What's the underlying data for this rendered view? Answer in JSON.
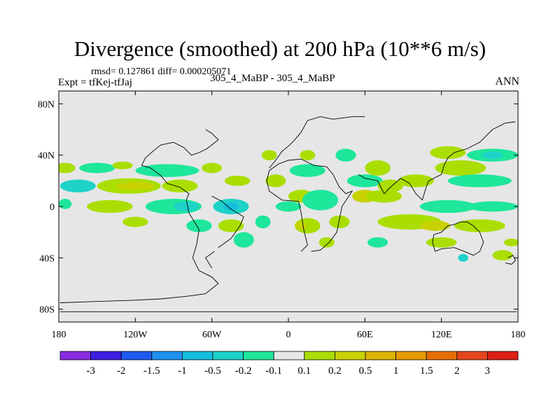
{
  "chart_data": {
    "type": "heatmap",
    "title": "Divergence (smoothed) at 200 hPa (10**6 m/s)",
    "stats_text": "rmsd= 0.127861 diff= 0.000205071",
    "experiment_text": "Expt = tfKej-tfJaj",
    "case_text": "305_4_MaBP - 305_4_MaBP",
    "season": "ANN",
    "xlim": [
      -180,
      180
    ],
    "ylim": [
      -90,
      90
    ],
    "x_ticks": [
      {
        "value": -180,
        "label": "180"
      },
      {
        "value": -120,
        "label": "120W"
      },
      {
        "value": -60,
        "label": "60W"
      },
      {
        "value": 0,
        "label": "0"
      },
      {
        "value": 60,
        "label": "60E"
      },
      {
        "value": 120,
        "label": "120E"
      },
      {
        "value": 180,
        "label": "180"
      }
    ],
    "y_ticks": [
      {
        "value": 80,
        "label": "80N"
      },
      {
        "value": 40,
        "label": "40N"
      },
      {
        "value": 0,
        "label": "0"
      },
      {
        "value": -40,
        "label": "40S"
      },
      {
        "value": -80,
        "label": "80S"
      }
    ],
    "colorbar": {
      "colors": [
        "#8a2be2",
        "#3c1ee0",
        "#1e5cf0",
        "#1e90f0",
        "#14bedc",
        "#1ed2c8",
        "#1ee69b",
        "#e6e6e6",
        "#aade00",
        "#c8d200",
        "#dcb400",
        "#e69b00",
        "#e66e00",
        "#e6461e",
        "#dc1e14"
      ],
      "labels": [
        "-3",
        "-2",
        "-1.5",
        "-1",
        "-0.5",
        "-0.2",
        "-0.1",
        "0.1",
        "0.2",
        "0.5",
        "1",
        "1.5",
        "2",
        "3"
      ]
    },
    "background_color": "#e6e6e6",
    "blobs": [
      {
        "lon": -175,
        "lat": 30,
        "rx": 8,
        "ry": 4,
        "level": 0.2
      },
      {
        "lon": -150,
        "lat": 30,
        "rx": 14,
        "ry": 4,
        "level": -0.1
      },
      {
        "lon": -130,
        "lat": 32,
        "rx": 8,
        "ry": 3,
        "level": 0.2
      },
      {
        "lon": -95,
        "lat": 28,
        "rx": 25,
        "ry": 5,
        "level": -0.1
      },
      {
        "lon": -60,
        "lat": 30,
        "rx": 8,
        "ry": 4,
        "level": 0.2
      },
      {
        "lon": -165,
        "lat": 16,
        "rx": 14,
        "ry": 5,
        "level": -0.2
      },
      {
        "lon": -125,
        "lat": 16,
        "rx": 25,
        "ry": 6,
        "level": 0.2
      },
      {
        "lon": -120,
        "lat": 16,
        "rx": 15,
        "ry": 3,
        "level": 0.5
      },
      {
        "lon": -85,
        "lat": 16,
        "rx": 14,
        "ry": 5,
        "level": 0.2
      },
      {
        "lon": -140,
        "lat": 0,
        "rx": 18,
        "ry": 5,
        "level": 0.2
      },
      {
        "lon": -175,
        "lat": 2,
        "rx": 5,
        "ry": 4,
        "level": -0.1
      },
      {
        "lon": -90,
        "lat": 0,
        "rx": 22,
        "ry": 6,
        "level": -0.1
      },
      {
        "lon": -80,
        "lat": 0,
        "rx": 10,
        "ry": 4,
        "level": -0.2
      },
      {
        "lon": -120,
        "lat": -12,
        "rx": 10,
        "ry": 4,
        "level": 0.2
      },
      {
        "lon": -70,
        "lat": -15,
        "rx": 10,
        "ry": 5,
        "level": -0.1
      },
      {
        "lon": -45,
        "lat": 0,
        "rx": 14,
        "ry": 6,
        "level": -0.2
      },
      {
        "lon": -45,
        "lat": 0,
        "rx": 6,
        "ry": 3,
        "level": -0.5
      },
      {
        "lon": -45,
        "lat": -15,
        "rx": 10,
        "ry": 5,
        "level": 0.2
      },
      {
        "lon": -35,
        "lat": -26,
        "rx": 8,
        "ry": 6,
        "level": -0.1
      },
      {
        "lon": -20,
        "lat": -12,
        "rx": 6,
        "ry": 5,
        "level": -0.1
      },
      {
        "lon": -40,
        "lat": 20,
        "rx": 10,
        "ry": 4,
        "level": 0.2
      },
      {
        "lon": -10,
        "lat": 20,
        "rx": 8,
        "ry": 5,
        "level": 0.2
      },
      {
        "lon": -15,
        "lat": 40,
        "rx": 6,
        "ry": 4,
        "level": 0.2
      },
      {
        "lon": 15,
        "lat": 28,
        "rx": 14,
        "ry": 5,
        "level": -0.1
      },
      {
        "lon": 15,
        "lat": 40,
        "rx": 6,
        "ry": 4,
        "level": 0.2
      },
      {
        "lon": 0,
        "lat": 0,
        "rx": 10,
        "ry": 4,
        "level": -0.1
      },
      {
        "lon": 10,
        "lat": 8,
        "rx": 10,
        "ry": 5,
        "level": 0.2
      },
      {
        "lon": 25,
        "lat": 5,
        "rx": 14,
        "ry": 8,
        "level": -0.1
      },
      {
        "lon": 15,
        "lat": -15,
        "rx": 10,
        "ry": 6,
        "level": 0.2
      },
      {
        "lon": 10,
        "lat": -15,
        "rx": 4,
        "ry": 3,
        "level": 0.5
      },
      {
        "lon": 40,
        "lat": -12,
        "rx": 8,
        "ry": 5,
        "level": 0.2
      },
      {
        "lon": 30,
        "lat": -28,
        "rx": 6,
        "ry": 4,
        "level": 0.2
      },
      {
        "lon": 45,
        "lat": 40,
        "rx": 8,
        "ry": 5,
        "level": -0.1
      },
      {
        "lon": 70,
        "lat": 30,
        "rx": 10,
        "ry": 6,
        "level": 0.2
      },
      {
        "lon": 60,
        "lat": 20,
        "rx": 14,
        "ry": 5,
        "level": -0.1
      },
      {
        "lon": 60,
        "lat": 8,
        "rx": 10,
        "ry": 5,
        "level": 0.5
      },
      {
        "lon": 75,
        "lat": 8,
        "rx": 14,
        "ry": 5,
        "level": 0.2
      },
      {
        "lon": 80,
        "lat": 16,
        "rx": 10,
        "ry": 5,
        "level": 0.2
      },
      {
        "lon": 100,
        "lat": 20,
        "rx": 14,
        "ry": 5,
        "level": 0.2
      },
      {
        "lon": 125,
        "lat": 42,
        "rx": 14,
        "ry": 5,
        "level": 0.2
      },
      {
        "lon": 135,
        "lat": 30,
        "rx": 20,
        "ry": 6,
        "level": 0.2
      },
      {
        "lon": 160,
        "lat": 40,
        "rx": 20,
        "ry": 5,
        "level": -0.1
      },
      {
        "lon": 160,
        "lat": 40,
        "rx": 8,
        "ry": 3,
        "level": -0.2
      },
      {
        "lon": 150,
        "lat": 20,
        "rx": 25,
        "ry": 5,
        "level": -0.1
      },
      {
        "lon": 125,
        "lat": 0,
        "rx": 22,
        "ry": 5,
        "level": -0.1
      },
      {
        "lon": 160,
        "lat": 0,
        "rx": 20,
        "ry": 4,
        "level": -0.1
      },
      {
        "lon": 95,
        "lat": -12,
        "rx": 25,
        "ry": 6,
        "level": 0.2
      },
      {
        "lon": 115,
        "lat": -15,
        "rx": 12,
        "ry": 4,
        "level": 0.5
      },
      {
        "lon": 150,
        "lat": -15,
        "rx": 20,
        "ry": 5,
        "level": 0.2
      },
      {
        "lon": 70,
        "lat": -28,
        "rx": 8,
        "ry": 4,
        "level": -0.1
      },
      {
        "lon": 120,
        "lat": -28,
        "rx": 12,
        "ry": 4,
        "level": 0.2
      },
      {
        "lon": 175,
        "lat": -28,
        "rx": 6,
        "ry": 3,
        "level": 0.2
      },
      {
        "lon": 137,
        "lat": -40,
        "rx": 4,
        "ry": 3,
        "level": -0.2
      },
      {
        "lon": 168,
        "lat": -38,
        "rx": 8,
        "ry": 4,
        "level": 0.2
      }
    ]
  }
}
